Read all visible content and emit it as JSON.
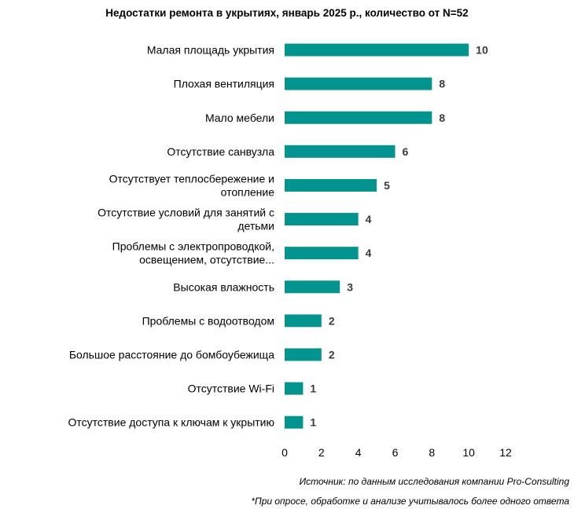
{
  "colors": {
    "bar": "#03948f",
    "value_text": "#3a3a3a"
  },
  "chart_data": {
    "type": "bar",
    "orientation": "horizontal",
    "title": "Недостатки ремонта в укрытиях, январь 2025 р., количество от N=52",
    "categories": [
      [
        "Малая площадь укрытия"
      ],
      [
        "Плохая вентиляция"
      ],
      [
        "Мало мебели"
      ],
      [
        "Отсутствие санвузла"
      ],
      [
        "Отсутствует теплосбережение и",
        "отопление"
      ],
      [
        "Отсутствие условий для занятий с",
        "детьми"
      ],
      [
        "Проблемы с электропроводкой,",
        "освещением, отсутствие..."
      ],
      [
        "Высокая влажность"
      ],
      [
        "Проблемы с водоотводом"
      ],
      [
        "Большое расстояние до бомбоубежища"
      ],
      [
        "Отсутствие Wi-Fi"
      ],
      [
        "Отсутствие доступа к ключам к укрытию"
      ]
    ],
    "values": [
      10,
      8,
      8,
      6,
      5,
      4,
      4,
      3,
      2,
      2,
      1,
      1
    ],
    "xlim": [
      0,
      12
    ],
    "xticks": [
      0,
      2,
      4,
      6,
      8,
      10,
      12
    ],
    "grid": false,
    "data_labels": true
  },
  "notes": {
    "source": "Источник: по данным исследования компании Pro-Consulting",
    "footnote": "*При опросе, обработке и анализе учитывалось более одного ответа"
  }
}
